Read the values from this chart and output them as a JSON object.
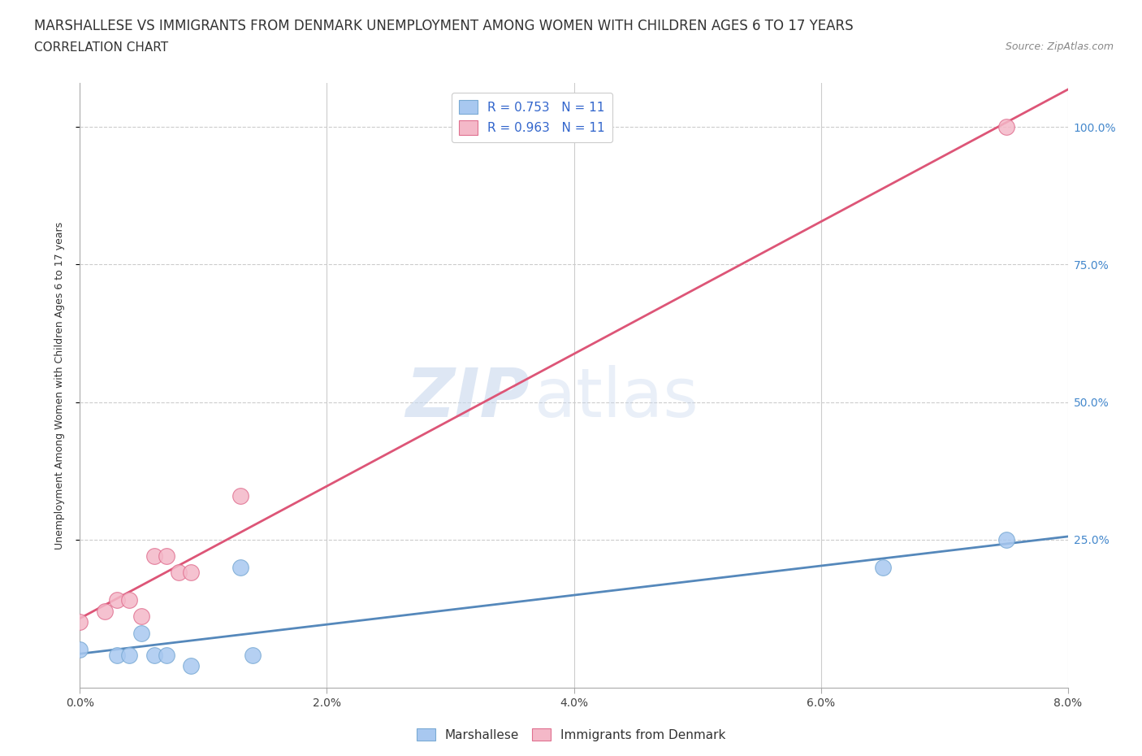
{
  "title": "MARSHALLESE VS IMMIGRANTS FROM DENMARK UNEMPLOYMENT AMONG WOMEN WITH CHILDREN AGES 6 TO 17 YEARS",
  "subtitle": "CORRELATION CHART",
  "source": "Source: ZipAtlas.com",
  "ylabel": "Unemployment Among Women with Children Ages 6 to 17 years",
  "xlim": [
    0.0,
    0.08
  ],
  "ylim": [
    -0.02,
    1.08
  ],
  "xtick_labels": [
    "0.0%",
    "2.0%",
    "4.0%",
    "6.0%",
    "8.0%"
  ],
  "xtick_values": [
    0.0,
    0.02,
    0.04,
    0.06,
    0.08
  ],
  "ytick_labels": [
    "25.0%",
    "50.0%",
    "75.0%",
    "100.0%"
  ],
  "ytick_values": [
    0.25,
    0.5,
    0.75,
    1.0
  ],
  "marshallese_x": [
    0.0,
    0.003,
    0.004,
    0.005,
    0.006,
    0.007,
    0.009,
    0.013,
    0.014,
    0.065,
    0.075
  ],
  "marshallese_y": [
    0.05,
    0.04,
    0.04,
    0.08,
    0.04,
    0.04,
    0.02,
    0.2,
    0.04,
    0.2,
    0.25
  ],
  "denmark_x": [
    0.0,
    0.002,
    0.003,
    0.004,
    0.005,
    0.006,
    0.007,
    0.008,
    0.009,
    0.013,
    0.075
  ],
  "denmark_y": [
    0.1,
    0.12,
    0.14,
    0.14,
    0.11,
    0.22,
    0.22,
    0.19,
    0.19,
    0.33,
    1.0
  ],
  "marshallese_color": "#a8c8f0",
  "marshallese_edge": "#7aaad4",
  "denmark_color": "#f4b8c8",
  "denmark_edge": "#e07090",
  "trend_marshallese_color": "#5588bb",
  "trend_denmark_color": "#dd5577",
  "r_marshallese": "0.753",
  "r_denmark": "0.963",
  "n_marshallese": 11,
  "n_denmark": 11,
  "watermark_zip": "ZIP",
  "watermark_atlas": "atlas",
  "background_color": "#ffffff",
  "grid_color": "#cccccc",
  "title_fontsize": 12,
  "subtitle_fontsize": 11,
  "axis_label_fontsize": 9,
  "tick_fontsize": 10,
  "legend_fontsize": 11
}
